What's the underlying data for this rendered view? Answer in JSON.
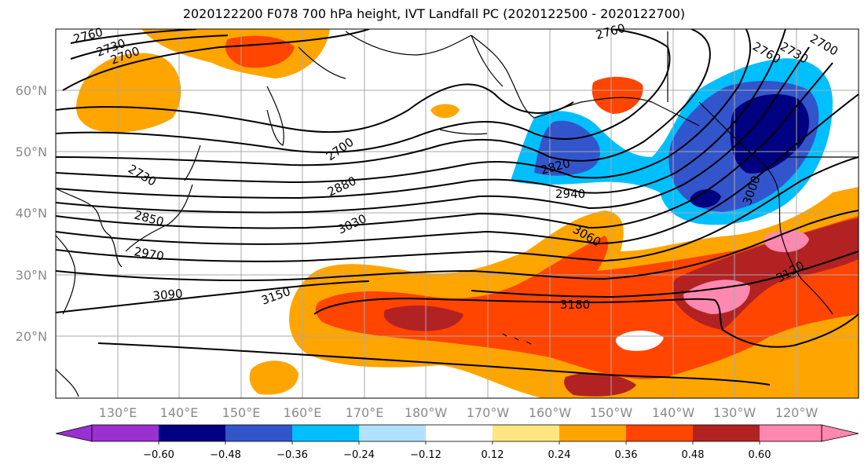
{
  "title": "2020122200 F078 700 hPa height, IVT Landfall PC (2020122500 - 2020122700)",
  "lat_labels": [
    "60°N",
    "50°N",
    "40°N",
    "30°N",
    "20°N"
  ],
  "lon_labels": [
    "130°E",
    "140°E",
    "150°E",
    "160°E",
    "170°E",
    "180°W",
    "170°W",
    "160°W",
    "150°W",
    "140°W",
    "130°W",
    "120°W"
  ],
  "contour_labels": [
    "2760",
    "2730",
    "2700",
    "2760",
    "2760",
    "2730",
    "2700",
    "2700",
    "2730",
    "2820",
    "2940",
    "2880",
    "2850",
    "3030",
    "2970",
    "3060",
    "3090",
    "3150",
    "3180",
    "3120",
    "3000"
  ],
  "colorbar": {
    "ticks": [
      "−0.60",
      "−0.48",
      "−0.36",
      "−0.24",
      "−0.12",
      "0.12",
      "0.24",
      "0.36",
      "0.48",
      "0.60"
    ],
    "colors": [
      "#9b30d0",
      "#000080",
      "#3355cc",
      "#00bfff",
      "#b0e2ff",
      "#ffffff",
      "#ffe680",
      "#ffa500",
      "#ff4500",
      "#b22222",
      "#ff88b0",
      "#ff88b0"
    ]
  },
  "palette": {
    "orange": "#ffa500",
    "red": "#ff4500",
    "darkred": "#b22222",
    "pink": "#ff88b0",
    "navy": "#000080",
    "blue": "#3355cc",
    "cyan": "#00bfff",
    "yellow": "#ffe680"
  }
}
